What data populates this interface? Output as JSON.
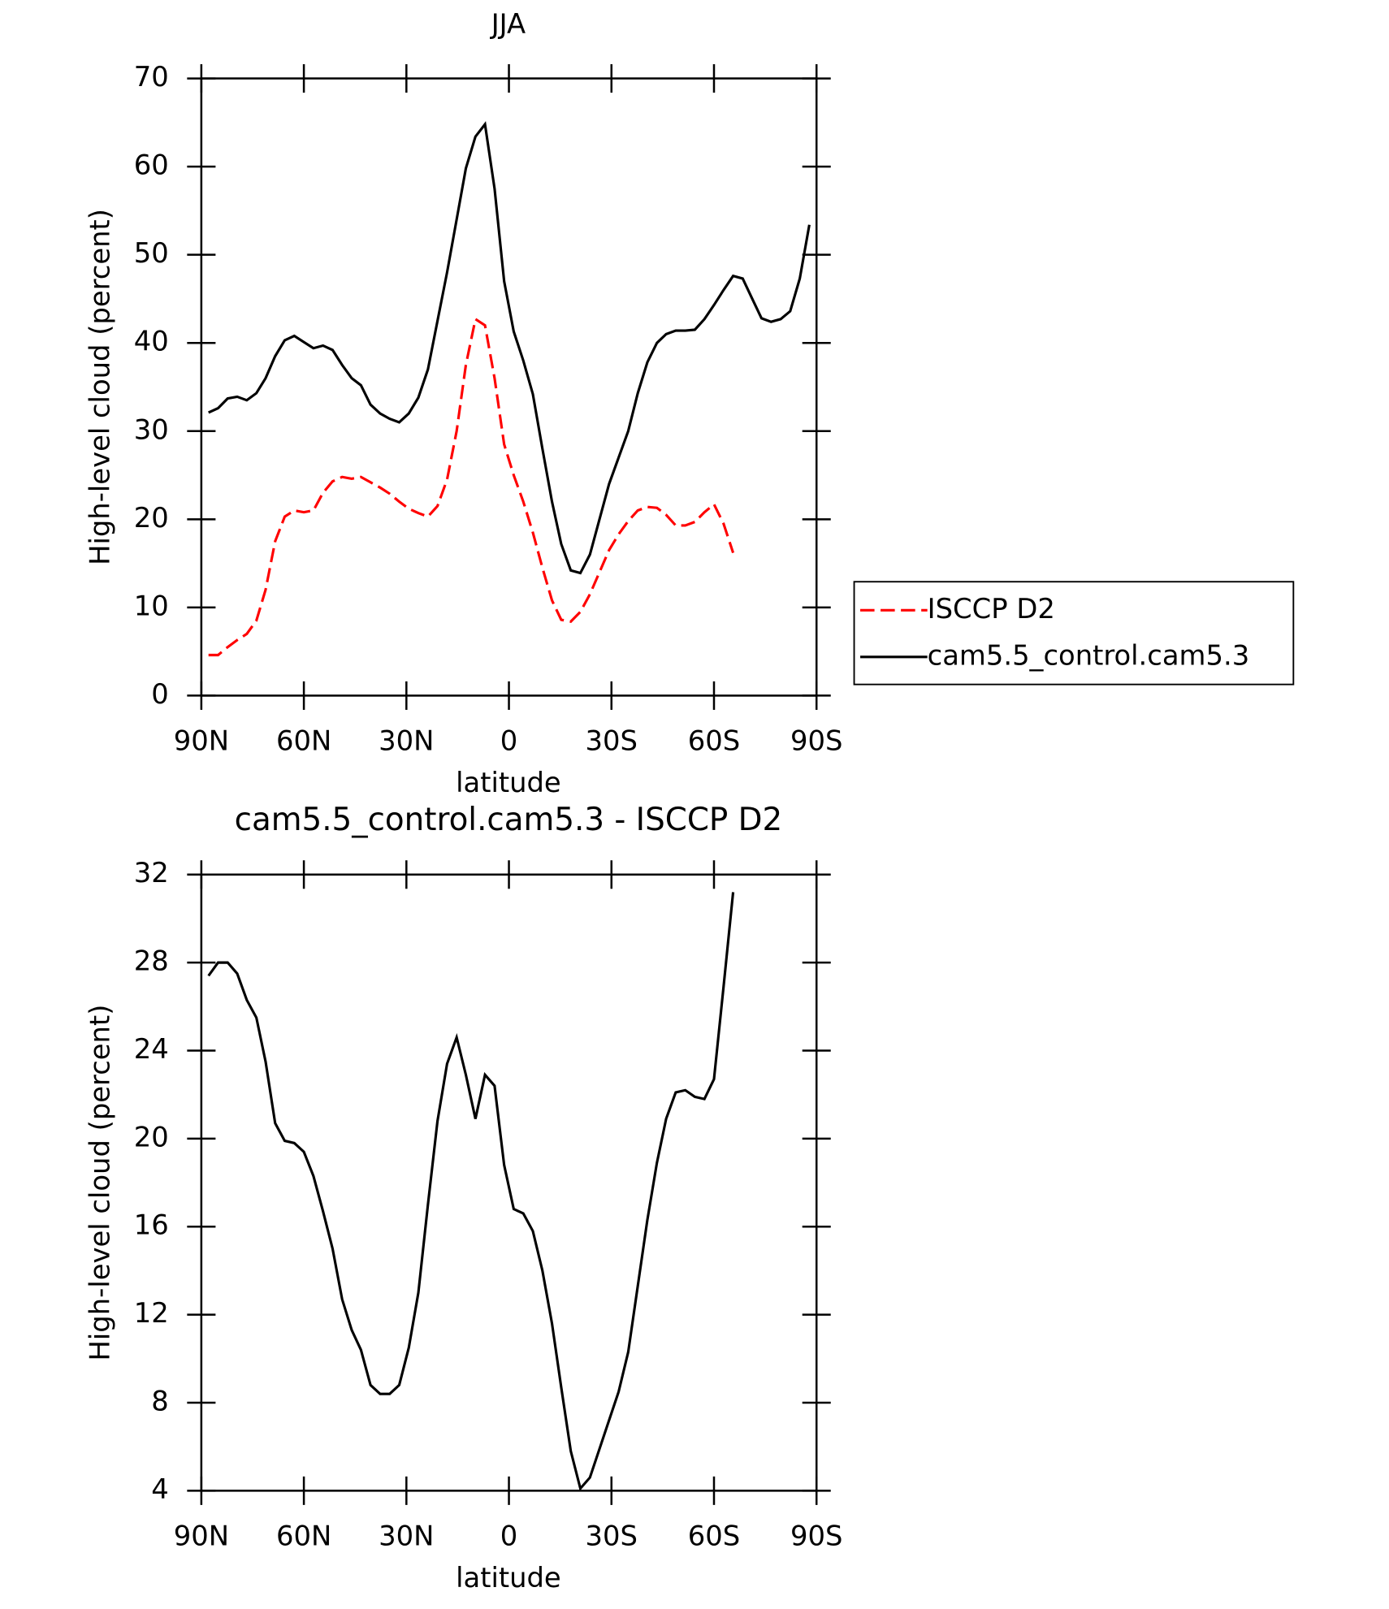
{
  "chart_data": [
    {
      "type": "line",
      "title": "JJA",
      "xlabel": "latitude",
      "ylabel": "High-level cloud (percent)",
      "x": [
        87.9,
        85.1,
        82.3,
        79.5,
        76.7,
        73.9,
        71.2,
        68.4,
        65.6,
        62.8,
        60.0,
        57.2,
        54.4,
        51.6,
        48.8,
        46.0,
        43.3,
        40.5,
        37.7,
        34.9,
        32.1,
        29.3,
        26.5,
        23.7,
        20.9,
        18.1,
        15.3,
        12.6,
        9.8,
        7.0,
        4.2,
        1.4,
        -1.4,
        -4.2,
        -7.0,
        -9.8,
        -12.6,
        -15.3,
        -18.1,
        -20.9,
        -23.7,
        -26.5,
        -29.3,
        -32.1,
        -34.9,
        -37.7,
        -40.5,
        -43.3,
        -46.0,
        -48.8,
        -51.6,
        -54.4,
        -57.2,
        -60.0,
        -62.8,
        -65.6,
        -68.4,
        -71.2,
        -73.9,
        -76.7,
        -79.5,
        -82.3,
        -85.1,
        -87.9
      ],
      "xlim": [
        90,
        -90
      ],
      "xticks": [
        {
          "value": 90,
          "label": "90N"
        },
        {
          "value": 60,
          "label": "60N"
        },
        {
          "value": 30,
          "label": "30N"
        },
        0,
        {
          "value": -30,
          "label": "30S"
        },
        {
          "value": -60,
          "label": "60S"
        },
        {
          "value": -90,
          "label": "90S"
        }
      ],
      "ylim": [
        0,
        70
      ],
      "yticks": [
        0,
        10,
        20,
        30,
        40,
        50,
        60,
        70
      ],
      "series": [
        {
          "name": "ISCCP D2",
          "color": "#ff0000",
          "dash": true,
          "values": [
            4.6,
            4.6,
            5.5,
            6.3,
            7.0,
            8.5,
            12.0,
            17.5,
            20.3,
            21.0,
            20.8,
            21.0,
            23.0,
            24.3,
            24.8,
            24.6,
            24.8,
            24.2,
            23.6,
            22.9,
            22.0,
            21.2,
            20.7,
            20.3,
            21.5,
            24.5,
            30.0,
            37.5,
            42.7,
            42.0,
            36.0,
            28.5,
            25.0,
            22.0,
            18.5,
            14.5,
            10.8,
            8.6,
            8.4,
            9.5,
            11.5,
            14.0,
            16.5,
            18.3,
            19.8,
            21.0,
            21.4,
            21.3,
            20.5,
            19.3,
            19.3,
            19.7,
            20.8,
            21.7,
            19.5,
            16.2,
            null,
            null,
            null,
            null,
            null,
            null,
            null,
            null
          ]
        },
        {
          "name": "cam5.5_control.cam5.3",
          "color": "#000000",
          "dash": false,
          "values": [
            32.1,
            32.6,
            33.7,
            33.9,
            33.5,
            34.3,
            36.0,
            38.5,
            40.3,
            40.8,
            40.1,
            39.4,
            39.7,
            39.2,
            37.5,
            36.0,
            35.2,
            33.0,
            32.0,
            31.4,
            31.0,
            32.0,
            33.8,
            37.0,
            42.5,
            48.0,
            54.0,
            59.8,
            63.4,
            64.8,
            57.5,
            47.0,
            41.3,
            38.0,
            34.2,
            28.0,
            22.0,
            17.2,
            14.2,
            13.9,
            16.0,
            20.0,
            24.0,
            27.0,
            30.0,
            34.3,
            37.8,
            40.0,
            41.0,
            41.4,
            41.4,
            41.5,
            42.7,
            44.3,
            46.0,
            47.6,
            47.3,
            45.0,
            42.8,
            42.4,
            42.7,
            43.6,
            47.3,
            53.4
          ]
        }
      ]
    },
    {
      "type": "line",
      "title": "cam5.5_control.cam5.3 - ISCCP D2",
      "xlabel": "latitude",
      "ylabel": "High-level cloud (percent)",
      "x": [
        87.9,
        85.1,
        82.3,
        79.5,
        76.7,
        73.9,
        71.2,
        68.4,
        65.6,
        62.8,
        60.0,
        57.2,
        54.4,
        51.6,
        48.8,
        46.0,
        43.3,
        40.5,
        37.7,
        34.9,
        32.1,
        29.3,
        26.5,
        23.7,
        20.9,
        18.1,
        15.3,
        12.6,
        9.8,
        7.0,
        4.2,
        1.4,
        -1.4,
        -4.2,
        -7.0,
        -9.8,
        -12.6,
        -15.3,
        -18.1,
        -20.9,
        -23.7,
        -26.5,
        -29.3,
        -32.1,
        -34.9,
        -37.7,
        -40.5,
        -43.3,
        -46.0,
        -48.8,
        -51.6,
        -54.4,
        -57.2,
        -60.0,
        -62.8,
        -65.6
      ],
      "xlim": [
        90,
        -90
      ],
      "xticks": [
        {
          "value": 90,
          "label": "90N"
        },
        {
          "value": 60,
          "label": "60N"
        },
        {
          "value": 30,
          "label": "30N"
        },
        0,
        {
          "value": -30,
          "label": "30S"
        },
        {
          "value": -60,
          "label": "60S"
        },
        {
          "value": -90,
          "label": "90S"
        }
      ],
      "ylim": [
        4,
        32
      ],
      "yticks": [
        4,
        8,
        12,
        16,
        20,
        24,
        28,
        32
      ],
      "series": [
        {
          "color": "#000000",
          "dash": false,
          "values": [
            27.4,
            28.0,
            28.0,
            27.5,
            26.3,
            25.5,
            23.5,
            20.7,
            19.9,
            19.8,
            19.4,
            18.3,
            16.7,
            15.0,
            12.7,
            11.3,
            10.4,
            8.8,
            8.4,
            8.4,
            8.8,
            10.5,
            13.0,
            17.0,
            20.8,
            23.4,
            24.6,
            22.9,
            20.9,
            22.9,
            22.4,
            18.8,
            16.8,
            16.6,
            15.8,
            14.0,
            11.6,
            8.7,
            5.8,
            4.1,
            4.6,
            5.9,
            7.2,
            8.5,
            10.3,
            13.3,
            16.3,
            18.9,
            20.9,
            22.1,
            22.2,
            21.9,
            21.8,
            22.7,
            26.9,
            31.2
          ]
        }
      ]
    }
  ]
}
